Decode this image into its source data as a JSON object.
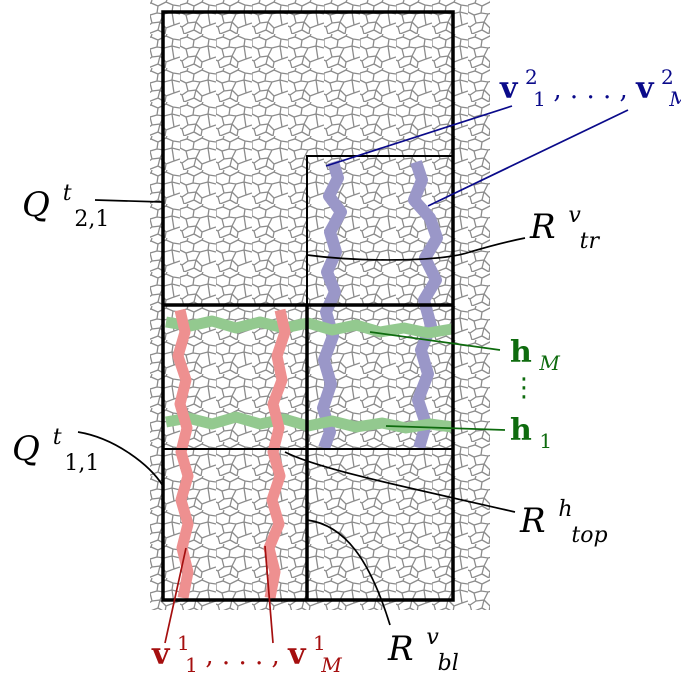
{
  "labels": {
    "q21": {
      "main": "Q",
      "sup": "t",
      "sub": "2,1"
    },
    "q11": {
      "main": "Q",
      "sup": "t",
      "sub": "1,1"
    },
    "rtr": {
      "main": "R",
      "sup": "v",
      "sub": "tr"
    },
    "rtop": {
      "main": "R",
      "sup": "h",
      "sub": "top"
    },
    "rbl": {
      "main": "R",
      "sup": "v",
      "sub": "bl"
    },
    "hM": {
      "main": "h",
      "sub": "M"
    },
    "dots": "⋮",
    "h1": {
      "main": "h",
      "sub": "1"
    },
    "v2": {
      "v1": "v",
      "sub1": "1",
      "sup1": "2",
      "sep": ", . . . , ",
      "v2": "v",
      "sub2": "M",
      "sup2": "2"
    },
    "v1": {
      "v1": "v",
      "sub1": "1",
      "sup1": "1",
      "sep": ", . . . , ",
      "v2": "v",
      "sub2": "M",
      "sup2": "1"
    }
  },
  "colors": {
    "blue_paths": "#9a97c8",
    "blue_text": "#0a0a8a",
    "green_paths": "#93c98f",
    "green_text": "#0e6b0e",
    "red_paths": "#ee9090",
    "red_text": "#a50f0f",
    "cell_lines": "#8c8c8c",
    "box": "#000000"
  },
  "icons": [
    "voronoi-mesh-texture"
  ]
}
